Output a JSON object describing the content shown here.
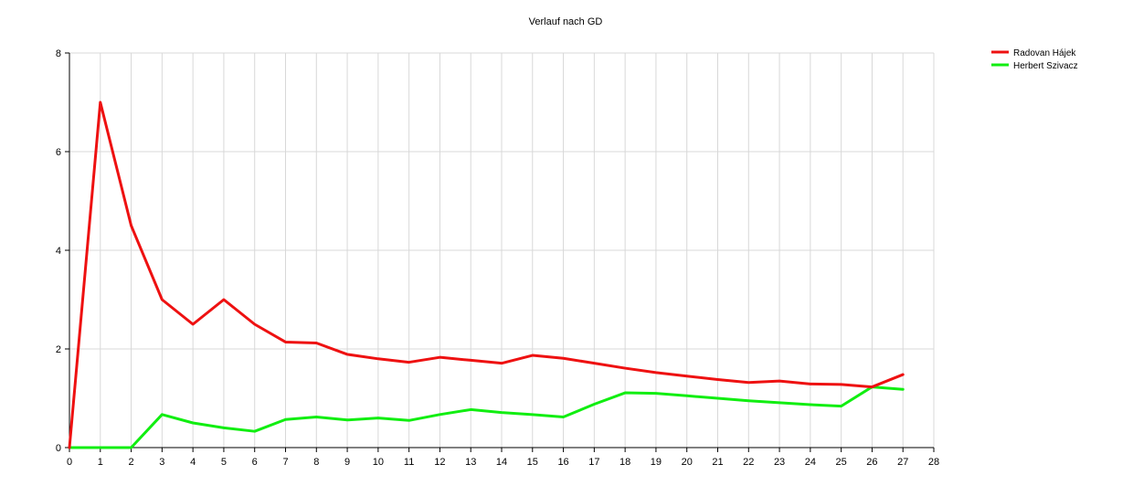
{
  "chart_data": {
    "type": "line",
    "title": "Verlauf nach GD",
    "xlabel": "",
    "ylabel": "",
    "xlim": [
      0,
      28
    ],
    "ylim": [
      0,
      8
    ],
    "xticks": [
      "0",
      "1",
      "2",
      "3",
      "4",
      "5",
      "6",
      "7",
      "8",
      "9",
      "10",
      "11",
      "12",
      "13",
      "14",
      "15",
      "16",
      "17",
      "18",
      "19",
      "20",
      "21",
      "22",
      "23",
      "24",
      "25",
      "26",
      "27",
      "28"
    ],
    "yticks": [
      "0",
      "2",
      "4",
      "6",
      "8"
    ],
    "grid": true,
    "legend_position": "top-right",
    "x": [
      0,
      1,
      2,
      3,
      4,
      5,
      6,
      7,
      8,
      9,
      10,
      11,
      12,
      13,
      14,
      15,
      16,
      17,
      18,
      19,
      20,
      21,
      22,
      23,
      24,
      25,
      26,
      27
    ],
    "series": [
      {
        "name": "Radovan Hájek",
        "color": "#ee1111",
        "values": [
          0,
          7.0,
          4.5,
          3.0,
          2.5,
          3.0,
          2.5,
          2.14,
          2.12,
          1.89,
          1.8,
          1.73,
          1.83,
          1.77,
          1.71,
          1.87,
          1.81,
          1.71,
          1.61,
          1.52,
          1.45,
          1.38,
          1.32,
          1.35,
          1.29,
          1.28,
          1.23,
          1.48
        ]
      },
      {
        "name": "Herbert Szivacz",
        "color": "#11ee11",
        "values": [
          0,
          0,
          0,
          0.67,
          0.5,
          0.4,
          0.33,
          0.57,
          0.62,
          0.56,
          0.6,
          0.55,
          0.67,
          0.77,
          0.71,
          0.67,
          0.62,
          0.88,
          1.11,
          1.1,
          1.05,
          1.0,
          0.95,
          0.91,
          0.87,
          0.84,
          1.23,
          1.18
        ]
      }
    ]
  }
}
